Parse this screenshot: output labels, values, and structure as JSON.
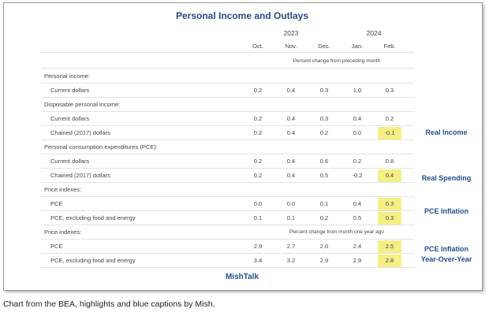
{
  "title": "Personal Income and Outlays",
  "years": [
    "2023",
    "2024"
  ],
  "months": [
    "Oct.",
    "Nov.",
    "Dec.",
    "Jan.",
    "Feb."
  ],
  "note": "Percent change from preceding month",
  "highlight_color": "#f6ef86",
  "sections": [
    {
      "label": "Personal income:",
      "rows": [
        {
          "label": "Current dollars",
          "values": [
            "0.2",
            "0.4",
            "0.3",
            "1.0",
            "0.3"
          ]
        }
      ]
    },
    {
      "label": "Disposable personal income:",
      "rows": [
        {
          "label": "Current dollars",
          "values": [
            "0.2",
            "0.4",
            "0.3",
            "0.4",
            "0.2"
          ]
        },
        {
          "label": "Chained (2017) dollars",
          "values": [
            "0.2",
            "0.4",
            "0.2",
            "0.0",
            "-0.1"
          ],
          "highlight": true
        }
      ]
    },
    {
      "label": "Personal consumption expenditures (PCE):",
      "rows": [
        {
          "label": "Current dollars",
          "values": [
            "0.2",
            "0.4",
            "0.6",
            "0.2",
            "0.8"
          ]
        },
        {
          "label": "Chained (2017) dollars",
          "values": [
            "0.2",
            "0.4",
            "0.5",
            "-0.2",
            "0.4"
          ],
          "highlight": true
        }
      ]
    },
    {
      "label": "Price indexes:",
      "rows": [
        {
          "label": "PCE",
          "values": [
            "0.0",
            "0.0",
            "0.1",
            "0.4",
            "0.3"
          ],
          "highlight": true
        },
        {
          "label": "PCE, excluding food and energy",
          "values": [
            "0.1",
            "0.1",
            "0.2",
            "0.5",
            "0.3"
          ],
          "highlight": true
        }
      ]
    },
    {
      "label": "Price indexes:",
      "note": "Percent change from month one year ago",
      "rows": [
        {
          "label": "PCE",
          "values": [
            "2.9",
            "2.7",
            "2.6",
            "2.4",
            "2.5"
          ],
          "highlight": true
        },
        {
          "label": "PCE, excluding food and energy",
          "values": [
            "3.4",
            "3.2",
            "2.9",
            "2.9",
            "2.8"
          ],
          "highlight": true
        }
      ]
    }
  ],
  "captions": [
    [
      "Real Income"
    ],
    [
      "Real Spending"
    ],
    [
      "PCE Inflation"
    ],
    [
      "PCE Inflation",
      "Year-Over-Year"
    ]
  ],
  "brand": "MishTalk",
  "footer": "Chart from the BEA, highlights and blue captions by Mish."
}
